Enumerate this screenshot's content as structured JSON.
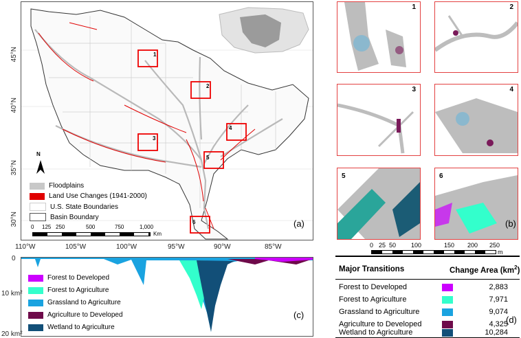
{
  "panel_a": {
    "label": "(a)",
    "lat_labels": [
      "45°N",
      "40°N",
      "35°N",
      "30°N"
    ],
    "lon_labels": [
      "110°W",
      "105°W",
      "100°W",
      "95°W",
      "90°W",
      "85°W"
    ],
    "legend": [
      {
        "label": "Floodplains",
        "color": "#c8c8c8"
      },
      {
        "label": "Land Use Changes (1941-2000)",
        "color": "#e00000"
      },
      {
        "label": "U.S. State Boundaries",
        "color": "#ffffff"
      },
      {
        "label": "Basin Boundary",
        "color": "#ffffff"
      }
    ],
    "scale_ticks": [
      "0",
      "125",
      "250",
      "500",
      "750",
      "1,000"
    ],
    "scale_unit": "Km",
    "north_label": "N",
    "site_labels": [
      "1",
      "2",
      "3",
      "4",
      "5",
      "6"
    ]
  },
  "panel_b": {
    "label": "(b)",
    "inset_labels": [
      "1",
      "2",
      "3",
      "4",
      "5",
      "6"
    ],
    "scale_ticks": [
      "0",
      "25",
      "50",
      "100",
      "150",
      "200",
      "250"
    ],
    "scale_unit": "m"
  },
  "panel_c": {
    "label": "(c)",
    "y_labels": [
      "0",
      "10 km²",
      "20 km²"
    ],
    "legend": [
      {
        "label": "Forest to Developed",
        "color": "#cc00ff"
      },
      {
        "label": "Forest to Agriculture",
        "color": "#33ffcc"
      },
      {
        "label": "Grassland to Agriculture",
        "color": "#1aa3e0"
      },
      {
        "label": "Agriculture to Developed",
        "color": "#6e0a4a"
      },
      {
        "label": "Wetland to Agriculture",
        "color": "#124f78"
      }
    ]
  },
  "panel_d": {
    "label": "(d)",
    "header_transitions": "Major Transitions",
    "header_area": "Change Area (km",
    "header_area_sup": "2",
    "header_area_close": ")",
    "rows": [
      {
        "label": "Forest to Developed",
        "color": "#cc00ff",
        "value": "2,883"
      },
      {
        "label": "Forest to Agriculture",
        "color": "#33ffcc",
        "value": "7,971"
      },
      {
        "label": "Grassland to Agriculture",
        "color": "#1aa3e0",
        "value": "9,074"
      },
      {
        "label": "Agriculture to Developed",
        "color": "#6e0a4a",
        "value": "4,325"
      },
      {
        "label": "Wetland to Agriculture",
        "color": "#124f78",
        "value": "10,284"
      }
    ]
  }
}
